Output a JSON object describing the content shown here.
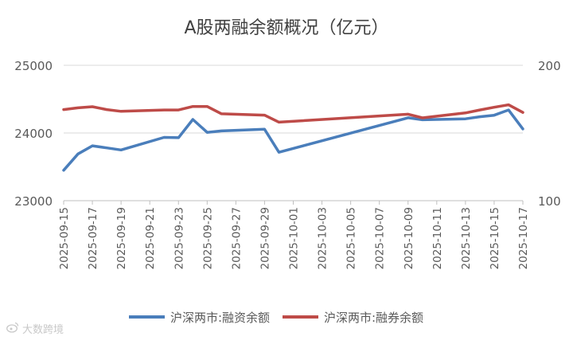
{
  "chart_data": {
    "type": "line",
    "title": "A股两融余额概况（亿元）",
    "x": [
      "2025-09-15",
      "2025-09-16",
      "2025-09-17",
      "2025-09-18",
      "2025-09-19",
      "2025-09-22",
      "2025-09-23",
      "2025-09-24",
      "2025-09-25",
      "2025-09-26",
      "2025-09-29",
      "2025-09-30",
      "2025-10-09",
      "2025-10-10",
      "2025-10-13",
      "2025-10-14",
      "2025-10-15",
      "2025-10-16",
      "2025-10-17"
    ],
    "x_tick_labels": [
      "2025-09-15",
      "2025-09-17",
      "2025-09-19",
      "2025-09-21",
      "2025-09-23",
      "2025-09-25",
      "2025-09-27",
      "2025-09-29",
      "2025-10-01",
      "2025-10-03",
      "2025-10-05",
      "2025-10-07",
      "2025-10-09",
      "2025-10-11",
      "2025-10-13",
      "2025-10-15",
      "2025-10-17"
    ],
    "y_left": {
      "lim": [
        23000,
        25000
      ],
      "ticks": [
        "23000",
        "24000",
        "25000"
      ]
    },
    "y_right": {
      "lim": [
        100,
        200
      ],
      "ticks": [
        "100",
        "200"
      ]
    },
    "series": [
      {
        "name": "沪深两市:融资余额",
        "axis": "left",
        "color": "#4a7ebb",
        "values": [
          23450,
          23690,
          23810,
          23780,
          23750,
          23935,
          23930,
          24200,
          24010,
          24030,
          24055,
          23715,
          24225,
          24195,
          24210,
          24240,
          24262,
          24340,
          24060
        ]
      },
      {
        "name": "沪深两市:融券余额",
        "axis": "right",
        "color": "#be4b48",
        "values": [
          167.3,
          168.6,
          169.4,
          167.3,
          166.0,
          167.0,
          167.0,
          169.6,
          169.6,
          164.2,
          163.2,
          158.0,
          163.9,
          161.2,
          164.8,
          167.0,
          169.0,
          170.8,
          165.2
        ]
      }
    ],
    "grid": true,
    "legend_position": "bottom"
  },
  "watermark_text": "大数跨境",
  "icon": "weibo-icon"
}
